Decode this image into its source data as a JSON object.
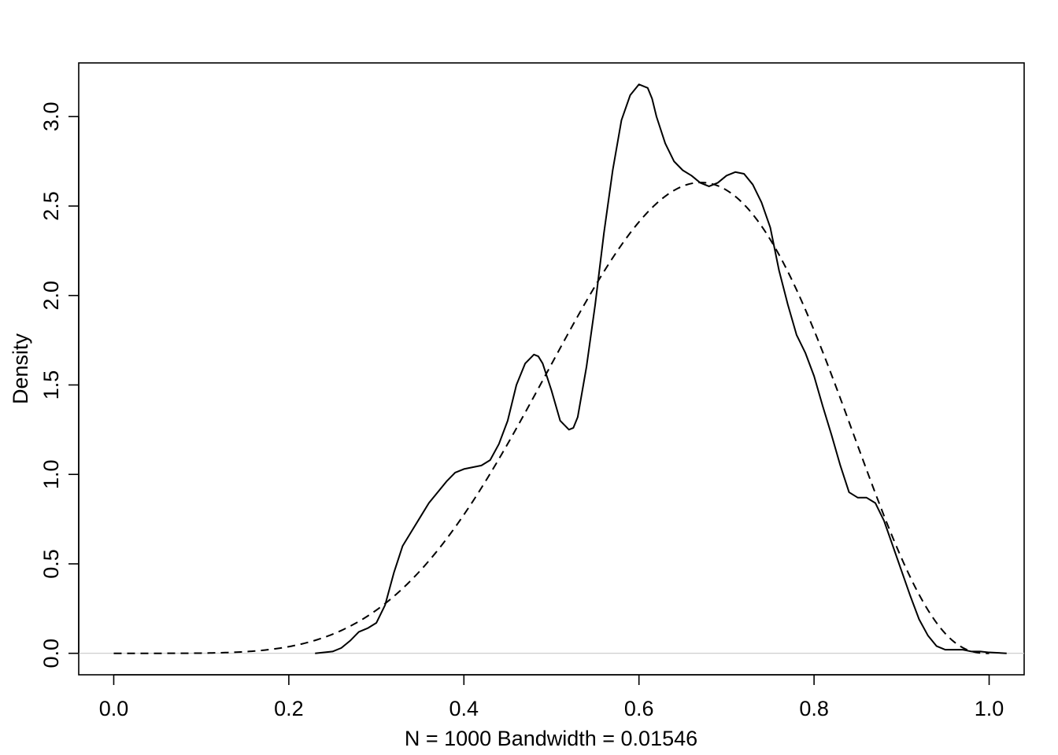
{
  "chart_data": {
    "type": "line",
    "title": "",
    "xlabel": "N = 1000   Bandwidth = 0.01546",
    "ylabel": "Density",
    "xlim": [
      -0.04,
      1.04
    ],
    "ylim": [
      -0.12,
      3.3
    ],
    "x_ticks": [
      {
        "value": 0.0,
        "label": "0.0"
      },
      {
        "value": 0.2,
        "label": "0.2"
      },
      {
        "value": 0.4,
        "label": "0.4"
      },
      {
        "value": 0.6,
        "label": "0.6"
      },
      {
        "value": 0.8,
        "label": "0.8"
      },
      {
        "value": 1.0,
        "label": "1.0"
      }
    ],
    "y_ticks": [
      {
        "value": 0.0,
        "label": "0.0"
      },
      {
        "value": 0.5,
        "label": "0.5"
      },
      {
        "value": 1.0,
        "label": "1.0"
      },
      {
        "value": 1.5,
        "label": "1.5"
      },
      {
        "value": 2.0,
        "label": "2.0"
      },
      {
        "value": 2.5,
        "label": "2.5"
      },
      {
        "value": 3.0,
        "label": "3.0"
      }
    ],
    "baseline_color": "#c8c8c8",
    "grid": false,
    "legend": "none",
    "series": [
      {
        "style": "solid",
        "color": "#000000",
        "x": [
          0.23,
          0.25,
          0.26,
          0.27,
          0.28,
          0.29,
          0.3,
          0.31,
          0.32,
          0.33,
          0.34,
          0.35,
          0.36,
          0.37,
          0.38,
          0.39,
          0.4,
          0.41,
          0.42,
          0.43,
          0.44,
          0.45,
          0.46,
          0.47,
          0.48,
          0.485,
          0.49,
          0.5,
          0.51,
          0.52,
          0.525,
          0.53,
          0.54,
          0.55,
          0.56,
          0.57,
          0.58,
          0.59,
          0.6,
          0.61,
          0.615,
          0.62,
          0.63,
          0.64,
          0.65,
          0.66,
          0.67,
          0.68,
          0.69,
          0.7,
          0.71,
          0.72,
          0.73,
          0.74,
          0.75,
          0.76,
          0.77,
          0.78,
          0.79,
          0.8,
          0.81,
          0.82,
          0.83,
          0.84,
          0.85,
          0.86,
          0.87,
          0.88,
          0.89,
          0.9,
          0.91,
          0.92,
          0.93,
          0.94,
          0.95,
          0.96,
          0.97,
          0.98,
          0.99,
          1.0,
          1.02
        ],
        "y": [
          0.0,
          0.01,
          0.03,
          0.07,
          0.12,
          0.14,
          0.17,
          0.27,
          0.45,
          0.6,
          0.68,
          0.76,
          0.84,
          0.9,
          0.96,
          1.01,
          1.03,
          1.04,
          1.05,
          1.08,
          1.17,
          1.3,
          1.5,
          1.62,
          1.67,
          1.66,
          1.62,
          1.47,
          1.3,
          1.25,
          1.26,
          1.32,
          1.6,
          1.95,
          2.35,
          2.7,
          2.98,
          3.12,
          3.18,
          3.16,
          3.1,
          3.0,
          2.85,
          2.75,
          2.7,
          2.67,
          2.63,
          2.61,
          2.63,
          2.67,
          2.69,
          2.68,
          2.62,
          2.52,
          2.38,
          2.14,
          1.95,
          1.78,
          1.68,
          1.55,
          1.38,
          1.22,
          1.05,
          0.9,
          0.87,
          0.87,
          0.84,
          0.74,
          0.6,
          0.46,
          0.32,
          0.19,
          0.1,
          0.04,
          0.02,
          0.02,
          0.02,
          0.01,
          0.01,
          0.005,
          0.0
        ]
      },
      {
        "style": "dashed",
        "color": "#000000",
        "distribution": {
          "family": "beta",
          "alpha": 6.5,
          "beta": 3.7
        }
      }
    ]
  }
}
